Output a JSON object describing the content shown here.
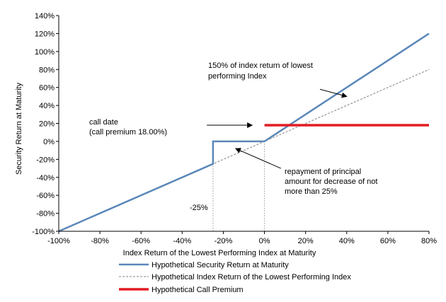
{
  "chart_data": {
    "type": "line",
    "xlabel": "Index Return of the Lowest Performing Index at Maturity",
    "ylabel": "Security Return at Maturity",
    "xlim": [
      -100,
      80
    ],
    "ylim": [
      -100,
      140
    ],
    "x_ticks": [
      "-100%",
      "-80%",
      "-60%",
      "-40%",
      "-20%",
      "0%",
      "20%",
      "40%",
      "60%",
      "80%"
    ],
    "x_tick_values": [
      -100,
      -80,
      -60,
      -40,
      -20,
      0,
      20,
      40,
      60,
      80
    ],
    "y_ticks": [
      "-100%",
      "-80%",
      "-60%",
      "-40%",
      "-20%",
      "0%",
      "20%",
      "40%",
      "60%",
      "80%",
      "100%",
      "120%",
      "140%"
    ],
    "y_tick_values": [
      -100,
      -80,
      -60,
      -40,
      -20,
      0,
      20,
      40,
      60,
      80,
      100,
      120,
      140
    ],
    "grid": false,
    "legend_position": "bottom",
    "series": [
      {
        "name": "Hypothetical Security Return at Maturity",
        "color": "#5a87b8",
        "style": "solid",
        "x": [
          -100,
          -25,
          -25,
          0,
          80
        ],
        "y": [
          -100,
          -25,
          0,
          0,
          120
        ]
      },
      {
        "name": "Hypothetical Index Return of the Lowest Performing Index",
        "color": "#808080",
        "style": "dashed",
        "x": [
          -100,
          80
        ],
        "y": [
          -100,
          80
        ]
      },
      {
        "name": "Hypothetical Call Premium",
        "color": "#e31b23",
        "style": "solid",
        "x": [
          0,
          80
        ],
        "y": [
          18,
          18
        ]
      }
    ],
    "reference_lines": [
      {
        "x": -25,
        "y_from": -100,
        "y_to": -25
      },
      {
        "x": 0,
        "y_from": -100,
        "y_to": 0
      }
    ],
    "annotations": [
      {
        "lines": [
          "150% of index return of lowest",
          "performing Index"
        ],
        "arrow_from": [
          27,
          58
        ],
        "arrow_to": [
          40,
          50
        ]
      },
      {
        "lines": [
          "call date",
          "(call premium 18.00%)"
        ],
        "arrow_from": [
          -28,
          18
        ],
        "arrow_to": [
          -6,
          18
        ]
      },
      {
        "lines": [
          "repayment of principal",
          "amount for decrease of not",
          "more than 25%"
        ],
        "arrow_from": [
          8,
          -30
        ],
        "arrow_to": [
          -14,
          -8
        ]
      },
      {
        "lines": [
          "-25%"
        ]
      }
    ]
  }
}
